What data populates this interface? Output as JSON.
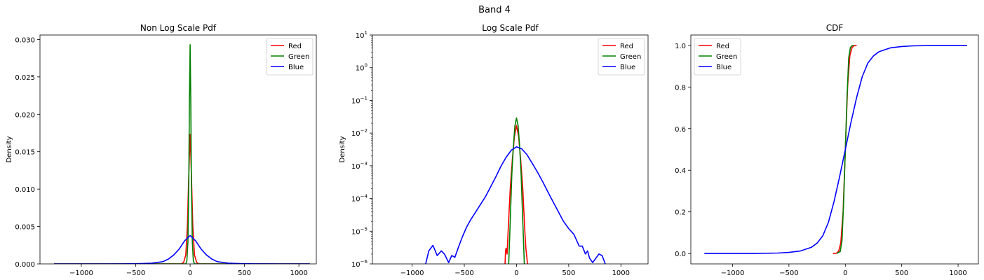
{
  "figure_title": "Band 4",
  "chart_data": [
    {
      "type": "line",
      "title": "Non Log Scale Pdf",
      "xlabel": "",
      "ylabel": "Density",
      "xlim": [
        -1380,
        1160
      ],
      "ylim": [
        0,
        0.0306
      ],
      "yscale": "linear",
      "xticks": [
        -1000,
        -500,
        0,
        500,
        1000
      ],
      "xtick_labels": [
        "−1000",
        "−500",
        "0",
        "500",
        "1000"
      ],
      "yticks": [
        0,
        0.005,
        0.01,
        0.015,
        0.02,
        0.025,
        0.03
      ],
      "ytick_labels": [
        "0.000",
        "0.005",
        "0.010",
        "0.015",
        "0.020",
        "0.025",
        "0.030"
      ],
      "grid": false,
      "legend_position": "top-right",
      "series": [
        {
          "name": "Red",
          "color": "#ff0000",
          "x": [
            -1250,
            -80,
            -60,
            -40,
            -25,
            -12,
            0,
            12,
            25,
            40,
            60,
            80,
            1100
          ],
          "y": [
            0,
            0,
            0.0002,
            0.0012,
            0.005,
            0.012,
            0.0173,
            0.012,
            0.005,
            0.0012,
            0.0002,
            0,
            0
          ]
        },
        {
          "name": "Green",
          "color": "#008000",
          "x": [
            -1250,
            -40,
            -30,
            -20,
            -12,
            -6,
            0,
            6,
            12,
            20,
            30,
            40,
            1100
          ],
          "y": [
            0,
            0,
            0.0004,
            0.003,
            0.011,
            0.022,
            0.0293,
            0.022,
            0.011,
            0.003,
            0.0004,
            0,
            0
          ]
        },
        {
          "name": "Blue",
          "color": "#0000ff",
          "x": [
            -1250,
            -800,
            -600,
            -450,
            -350,
            -250,
            -200,
            -150,
            -100,
            -50,
            0,
            50,
            100,
            150,
            200,
            250,
            350,
            450,
            600,
            800,
            1100
          ],
          "y": [
            0,
            0,
            1e-05,
            5e-05,
            0.0001,
            0.0003,
            0.00065,
            0.0012,
            0.002,
            0.0031,
            0.0038,
            0.0031,
            0.002,
            0.0012,
            0.00065,
            0.0003,
            0.0001,
            5e-05,
            1e-05,
            0,
            0
          ]
        }
      ]
    },
    {
      "type": "line",
      "title": "Log Scale Pdf",
      "xlabel": "",
      "ylabel": "Density",
      "xlim": [
        -1380,
        1260
      ],
      "ylim": [
        1e-06,
        10
      ],
      "yscale": "log",
      "xticks": [
        -1000,
        -500,
        0,
        500,
        1000
      ],
      "xtick_labels": [
        "−1000",
        "−500",
        "0",
        "500",
        "1000"
      ],
      "yticks": [
        1e-06,
        1e-05,
        0.0001,
        0.001,
        0.01,
        0.1,
        1,
        10
      ],
      "ytick_labels": [
        {
          "base": "10",
          "exp": "−6"
        },
        {
          "base": "10",
          "exp": "−5"
        },
        {
          "base": "10",
          "exp": "−4"
        },
        {
          "base": "10",
          "exp": "−3"
        },
        {
          "base": "10",
          "exp": "−2"
        },
        {
          "base": "10",
          "exp": "−1"
        },
        {
          "base": "10",
          "exp": "0"
        },
        {
          "base": "10",
          "exp": "1"
        }
      ],
      "grid": false,
      "legend_position": "top-right",
      "series": [
        {
          "name": "Red",
          "color": "#ff0000",
          "x": [
            -110,
            -105,
            -100,
            -90,
            -80,
            -60,
            -40,
            -20,
            0,
            20,
            40,
            60,
            80,
            90,
            100,
            105
          ],
          "y": [
            1e-06,
            2.5e-06,
            3e-06,
            2e-06,
            1e-05,
            0.0002,
            0.0015,
            0.008,
            0.017,
            0.008,
            0.0015,
            0.0002,
            1e-05,
            3e-06,
            1.5e-06,
            1e-06
          ]
        },
        {
          "name": "Green",
          "color": "#008000",
          "x": [
            -75,
            -60,
            -45,
            -30,
            -15,
            0,
            15,
            30,
            45,
            60,
            75
          ],
          "y": [
            1e-06,
            2e-05,
            0.0005,
            0.004,
            0.017,
            0.029,
            0.017,
            0.004,
            0.0005,
            2e-05,
            1e-06
          ]
        },
        {
          "name": "Blue",
          "color": "#0000ff",
          "x": [
            -870,
            -840,
            -800,
            -760,
            -720,
            -690,
            -650,
            -620,
            -590,
            -560,
            -520,
            -480,
            -440,
            -400,
            -360,
            -300,
            -250,
            -200,
            -150,
            -100,
            -50,
            0,
            50,
            100,
            150,
            200,
            250,
            300,
            350,
            400,
            450,
            500,
            550,
            600,
            630,
            660,
            680,
            700,
            730,
            760,
            790,
            820,
            850
          ],
          "y": [
            1e-06,
            2.5e-06,
            3.7e-06,
            1.8e-06,
            2.5e-06,
            2e-06,
            1.1e-06,
            1.8e-06,
            1.6e-06,
            3e-06,
            6.5e-06,
            1.3e-05,
            2.2e-05,
            3.5e-05,
            5.5e-05,
            0.00011,
            0.00022,
            0.00045,
            0.00095,
            0.0018,
            0.003,
            0.0038,
            0.0033,
            0.0022,
            0.0012,
            0.00065,
            0.00033,
            0.00016,
            8e-05,
            4e-05,
            2e-05,
            1.2e-05,
            8e-06,
            3.5e-06,
            3.5e-06,
            2e-06,
            2.5e-06,
            1.5e-06,
            1.1e-06,
            1.5e-06,
            2e-06,
            1.8e-06,
            1e-06
          ]
        }
      ]
    },
    {
      "type": "line",
      "title": "CDF",
      "xlabel": "",
      "ylabel": "",
      "xlim": [
        -1370,
        1180
      ],
      "ylim": [
        -0.05,
        1.05
      ],
      "yscale": "linear",
      "xticks": [
        -1000,
        -500,
        0,
        500,
        1000
      ],
      "xtick_labels": [
        "−1000",
        "−500",
        "0",
        "500",
        "1000"
      ],
      "yticks": [
        0,
        0.2,
        0.4,
        0.6,
        0.8,
        1
      ],
      "ytick_labels": [
        "0.0",
        "0.2",
        "0.4",
        "0.6",
        "0.8",
        "1.0"
      ],
      "grid": false,
      "legend_position": "top-left",
      "series": [
        {
          "name": "Red",
          "color": "#ff0000",
          "x": [
            -110,
            -80,
            -60,
            -40,
            -20,
            0,
            20,
            40,
            60,
            80,
            100
          ],
          "y": [
            0,
            0.001,
            0.01,
            0.05,
            0.2,
            0.5,
            0.8,
            0.95,
            0.99,
            0.999,
            1
          ]
        },
        {
          "name": "Green",
          "color": "#008000",
          "x": [
            -75,
            -45,
            -30,
            -15,
            0,
            15,
            30,
            45,
            60,
            75
          ],
          "y": [
            0,
            0.01,
            0.06,
            0.25,
            0.5,
            0.75,
            0.94,
            0.99,
            0.999,
            1
          ]
        },
        {
          "name": "Blue",
          "color": "#0000ff",
          "x": [
            -1250,
            -800,
            -600,
            -500,
            -400,
            -300,
            -250,
            -200,
            -150,
            -100,
            -50,
            0,
            50,
            100,
            150,
            200,
            250,
            300,
            400,
            500,
            600,
            800,
            1080
          ],
          "y": [
            0,
            0,
            0.002,
            0.005,
            0.012,
            0.03,
            0.05,
            0.085,
            0.15,
            0.25,
            0.37,
            0.5,
            0.63,
            0.75,
            0.85,
            0.915,
            0.95,
            0.97,
            0.988,
            0.995,
            0.998,
            1,
            1
          ]
        }
      ]
    }
  ]
}
